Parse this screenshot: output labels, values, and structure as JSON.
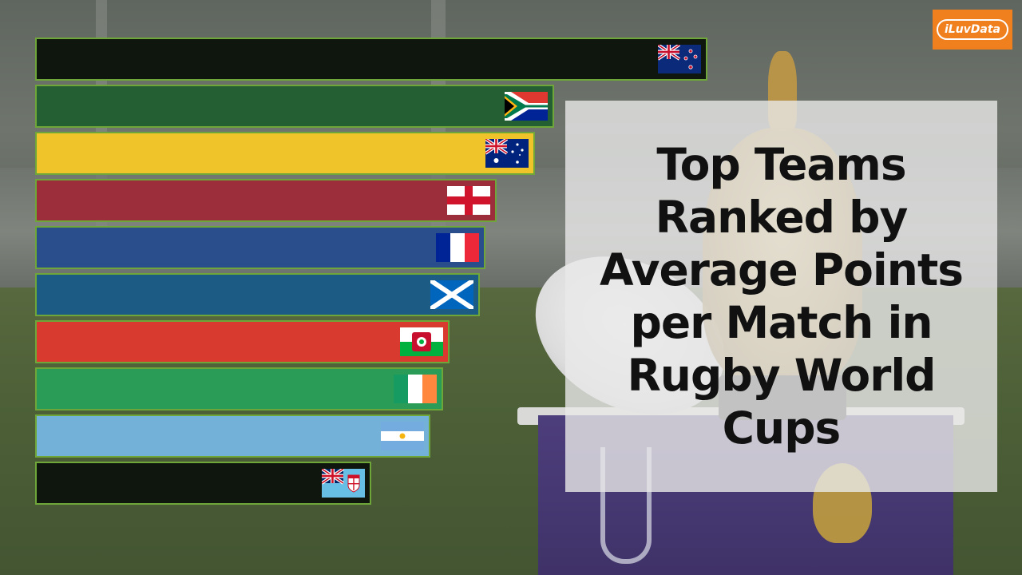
{
  "title": "Top Teams\nRanked by\nAverage Points\nper Match in\nRugby World\nCups",
  "brand": "iLuvData",
  "chart_data": {
    "type": "bar",
    "orientation": "horizontal",
    "title": "Top Teams Ranked by Average Points per Match in Rugby World Cups",
    "categories": [
      "New Zealand",
      "South Africa",
      "Australia",
      "England",
      "France",
      "Scotland",
      "Wales",
      "Ireland",
      "Argentina",
      "Fiji"
    ],
    "values": [
      100,
      77.2,
      74.3,
      68.7,
      67.0,
      66.1,
      61.6,
      60.7,
      58.8,
      50.0
    ],
    "value_unit": "relative bar length (% of longest; no axis shown)",
    "bar_colors": [
      "#0e160d",
      "#235f33",
      "#efc42a",
      "#9c2e3b",
      "#2a4d8c",
      "#1c5b84",
      "#d83a2f",
      "#2a9c57",
      "#74b1d9",
      "#0e160d"
    ],
    "flag_icons": [
      "new-zealand-flag-icon",
      "south-africa-flag-icon",
      "australia-flag-icon",
      "england-flag-icon",
      "france-flag-icon",
      "scotland-flag-icon",
      "wales-flag-icon",
      "ireland-flag-icon",
      "argentina-flag-icon",
      "fiji-flag-icon"
    ],
    "grid": false,
    "legend": "none"
  }
}
